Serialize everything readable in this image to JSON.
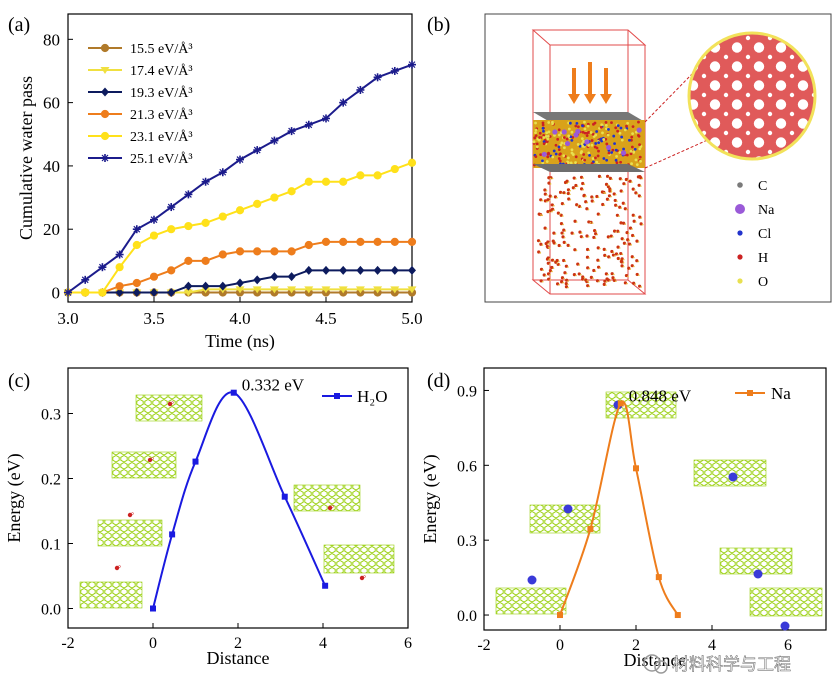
{
  "panel_labels": [
    "(a)",
    "(b)",
    "(c)",
    "(d)"
  ],
  "watermark": "材料科学与工程",
  "chart_data": [
    {
      "type": "line",
      "panel": "(a)",
      "xlabel": "Time (ns)",
      "ylabel": "Cumulative water pass",
      "xlim": [
        3.0,
        5.0
      ],
      "ylim": [
        -3,
        88
      ],
      "xticks": [
        "3.0",
        "3.5",
        "4.0",
        "4.5",
        "5.0"
      ],
      "yticks": [
        "0",
        "20",
        "40",
        "60",
        "80"
      ],
      "legend_position": "top-left",
      "x": [
        3.0,
        3.1,
        3.2,
        3.3,
        3.4,
        3.5,
        3.6,
        3.7,
        3.8,
        3.9,
        4.0,
        4.1,
        4.2,
        4.3,
        4.4,
        4.5,
        4.6,
        4.7,
        4.8,
        4.9,
        5.0
      ],
      "series": [
        {
          "name": "15.5 eV/Å³",
          "color": "#b07a2a",
          "marker": "circle",
          "values": [
            0,
            0,
            0,
            0,
            0,
            0,
            0,
            0,
            0,
            0,
            0,
            0,
            0,
            0,
            0,
            0,
            0,
            0,
            0,
            0,
            0
          ]
        },
        {
          "name": "17.4 eV/Å³",
          "color": "#f0e040",
          "marker": "triangle-down",
          "values": [
            0,
            0,
            0,
            0,
            0,
            0,
            0,
            0,
            1,
            1,
            1,
            1,
            1,
            1,
            1,
            1,
            1,
            1,
            1,
            1,
            1
          ]
        },
        {
          "name": "19.3 eV/Å³",
          "color": "#0d1b5e",
          "marker": "diamond",
          "values": [
            0,
            0,
            0,
            0,
            0,
            0,
            0,
            2,
            2,
            2,
            3,
            4,
            5,
            5,
            7,
            7,
            7,
            7,
            7,
            7,
            7
          ]
        },
        {
          "name": "21.3 eV/Å³",
          "color": "#ee7d1c",
          "marker": "circle",
          "values": [
            0,
            0,
            0,
            2,
            3,
            5,
            7,
            10,
            10,
            12,
            13,
            13,
            13,
            13,
            15,
            16,
            16,
            16,
            16,
            16,
            16
          ]
        },
        {
          "name": "23.1 eV/Å³",
          "color": "#ffe11a",
          "marker": "circle",
          "values": [
            0,
            0,
            0,
            8,
            15,
            18,
            20,
            21,
            22,
            24,
            26,
            28,
            30,
            32,
            35,
            35,
            35,
            37,
            37,
            39,
            41
          ]
        },
        {
          "name": "25.1 eV/Å³",
          "color": "#1c1c8c",
          "marker": "star",
          "values": [
            0,
            4,
            8,
            12,
            20,
            23,
            27,
            31,
            35,
            38,
            42,
            45,
            48,
            51,
            53,
            55,
            60,
            64,
            68,
            70,
            72
          ]
        }
      ]
    },
    {
      "type": "line",
      "panel": "(c)",
      "xlabel": "Distance",
      "ylabel": "Energy (eV)",
      "xlim": [
        -2,
        6
      ],
      "ylim": [
        -0.03,
        0.37
      ],
      "xticks": [
        "-2",
        "0",
        "2",
        "4",
        "6"
      ],
      "yticks": [
        "0.0",
        "0.1",
        "0.2",
        "0.3"
      ],
      "legend": "H₂O",
      "annotation": "0.332 eV",
      "color": "#1a1ae0",
      "x": [
        0,
        0.45,
        1.0,
        1.9,
        3.1,
        4.05
      ],
      "values": [
        0,
        0.114,
        0.226,
        0.332,
        0.172,
        0.035
      ]
    },
    {
      "type": "line",
      "panel": "(d)",
      "xlabel": "Distance",
      "ylabel": "Energy (eV)",
      "xlim": [
        -2,
        7
      ],
      "ylim": [
        -0.06,
        0.99
      ],
      "xticks": [
        "-2",
        "0",
        "2",
        "4",
        "6"
      ],
      "yticks": [
        "0.0",
        "0.3",
        "0.6",
        "0.9"
      ],
      "legend": "Na",
      "annotation": "0.848 eV",
      "color": "#ee7d1c",
      "x": [
        0,
        0.8,
        1.6,
        2.0,
        2.6,
        3.1
      ],
      "values": [
        0,
        0.345,
        0.848,
        0.588,
        0.152,
        0
      ]
    }
  ],
  "diagram_b": {
    "legend": [
      {
        "label": "C",
        "color": "#7a7a7a"
      },
      {
        "label": "Na",
        "color": "#9a5ad8"
      },
      {
        "label": "Cl",
        "color": "#2233cc"
      },
      {
        "label": "H",
        "color": "#cc2222"
      },
      {
        "label": "O",
        "color": "#e8e050"
      }
    ]
  }
}
